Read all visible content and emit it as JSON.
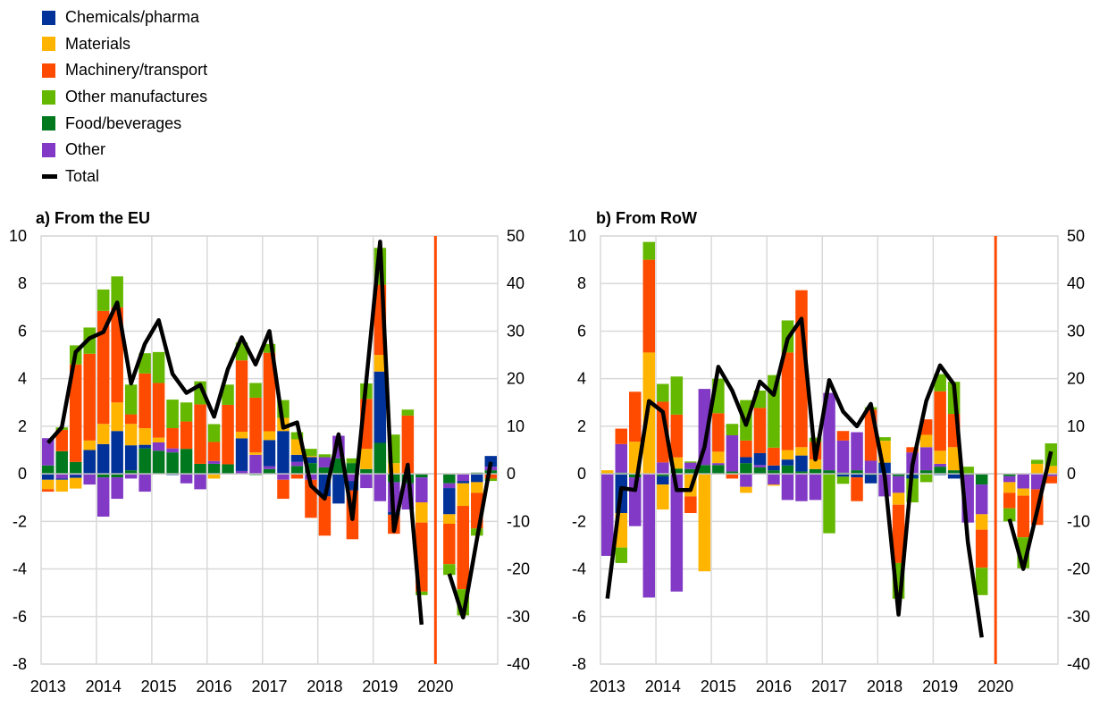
{
  "legend": [
    {
      "key": "chem",
      "label": "Chemicals/pharma",
      "color": "#003299"
    },
    {
      "key": "mat",
      "label": "Materials",
      "color": "#ffb400"
    },
    {
      "key": "mach",
      "label": "Machinery/transport",
      "color": "#ff4b00"
    },
    {
      "key": "othman",
      "label": "Other manufactures",
      "color": "#65b800"
    },
    {
      "key": "food",
      "label": "Food/beverages",
      "color": "#00781e"
    },
    {
      "key": "other",
      "label": "Other",
      "color": "#8139c6"
    },
    {
      "key": "total",
      "label": "Total",
      "color": "#000000"
    }
  ],
  "break_line_color": "#ff4b00",
  "chart_data": [
    {
      "type": "bar",
      "title": "a) From the EU",
      "x_ticks": [
        "2013",
        "2014",
        "2015",
        "2016",
        "2017",
        "2018",
        "2019",
        "2020"
      ],
      "quarters": [
        "2013Q1",
        "2013Q2",
        "2013Q3",
        "2013Q4",
        "2014Q1",
        "2014Q2",
        "2014Q3",
        "2014Q4",
        "2015Q1",
        "2015Q2",
        "2015Q3",
        "2015Q4",
        "2016Q1",
        "2016Q2",
        "2016Q3",
        "2016Q4",
        "2017Q1",
        "2017Q2",
        "2017Q3",
        "2017Q4",
        "2018Q1",
        "2018Q2",
        "2018Q3",
        "2018Q4",
        "2019Q1",
        "2019Q2",
        "2019Q3",
        "2019Q4",
        "2020Q1",
        "2020Q2",
        "2020Q3",
        "2020Q4"
      ],
      "ylim_left": [
        -8,
        10
      ],
      "yticks_left": [
        "10",
        "8",
        "6",
        "4",
        "2",
        "0",
        "-2",
        "-4",
        "-6",
        "-8"
      ],
      "ylim_right": [
        -40,
        50
      ],
      "yticks_right": [
        "50",
        "40",
        "30",
        "20",
        "10",
        "0",
        "-10",
        "-20",
        "-30",
        "-40"
      ],
      "series": {
        "chem": [
          -0.25,
          -0.05,
          -0.12,
          1.0,
          1.25,
          1.8,
          1.05,
          0.15,
          0,
          -0.05,
          0,
          0,
          0,
          0,
          1.37,
          0,
          1.1,
          1.8,
          0.3,
          0.25,
          -0.95,
          -1.25,
          -0.4,
          0,
          3.0,
          -0.12,
          0,
          0,
          -1.1,
          -0.1,
          -0.35,
          0.45
        ],
        "mat": [
          -0.4,
          -0.5,
          -0.45,
          0.4,
          0.85,
          1.2,
          0.9,
          0.7,
          0.2,
          0,
          0,
          0,
          -0.2,
          0,
          0.28,
          0.1,
          0.37,
          0.55,
          0.65,
          0.05,
          0,
          0,
          0,
          0.85,
          0.7,
          0.45,
          0,
          -0.85,
          -0.4,
          -0.95,
          -0.45,
          0
        ],
        "mach": [
          -0.1,
          0.9,
          4.1,
          3.65,
          4.75,
          4.0,
          0.4,
          2.3,
          2.3,
          0.85,
          1.15,
          2.5,
          0.8,
          2.5,
          3.0,
          2.3,
          3.3,
          -0.8,
          -0.2,
          -1.6,
          -1.65,
          0,
          -2.05,
          2.1,
          2.95,
          -0.8,
          2.45,
          -2.9,
          -1.7,
          -3.5,
          -1.5,
          -0.2
        ],
        "othman": [
          0,
          0.1,
          0.8,
          1.1,
          0.9,
          1.3,
          1.25,
          0.85,
          1.3,
          1.2,
          0.8,
          0.97,
          0.75,
          0.85,
          0.75,
          0.62,
          0.37,
          0.75,
          0.3,
          0.3,
          0.12,
          0,
          0.2,
          0.65,
          1.55,
          1.2,
          0.25,
          -0.15,
          -0.45,
          -1.1,
          -0.3,
          -0.1
        ],
        "food": [
          0.35,
          0.95,
          0.5,
          0,
          -0.15,
          -0.15,
          0.15,
          1.07,
          0.97,
          0.9,
          1.05,
          0.42,
          0.42,
          0.4,
          0,
          -0.05,
          0.2,
          0,
          0.33,
          0.45,
          0.27,
          0.65,
          0.45,
          0.2,
          1.3,
          -0.35,
          -0.4,
          -0.15,
          -0.4,
          0,
          0.05,
          0.15
        ],
        "other": [
          1.15,
          -0.2,
          -0.05,
          -0.45,
          -1.65,
          -0.9,
          -0.2,
          -0.75,
          0.35,
          0.17,
          -0.4,
          -0.65,
          0.12,
          0,
          0.12,
          0.8,
          0.12,
          -0.25,
          0.17,
          -0.25,
          0.43,
          0.95,
          -0.3,
          -0.6,
          -1.15,
          -1.25,
          -1.1,
          -1.05,
          -0.2,
          -0.3,
          0,
          0.15
        ],
        "total": [
          6.5,
          9.8,
          25.6,
          28.5,
          29.8,
          36,
          19,
          27.3,
          32.3,
          21,
          17,
          18.7,
          12,
          22,
          28.7,
          23,
          30,
          9.7,
          10.8,
          -2.5,
          -5.2,
          8.3,
          -9.5,
          19.5,
          48.8,
          -12,
          1.9,
          -31.7,
          -21,
          -30.2,
          -13.7,
          2.5
        ]
      }
    },
    {
      "type": "bar",
      "title": "b) From RoW",
      "x_ticks": [
        "2013",
        "2014",
        "2015",
        "2016",
        "2017",
        "2018",
        "2019",
        "2020"
      ],
      "quarters": [
        "2013Q1",
        "2013Q2",
        "2013Q3",
        "2013Q4",
        "2014Q1",
        "2014Q2",
        "2014Q3",
        "2014Q4",
        "2015Q1",
        "2015Q2",
        "2015Q3",
        "2015Q4",
        "2016Q1",
        "2016Q2",
        "2016Q3",
        "2016Q4",
        "2017Q1",
        "2017Q2",
        "2017Q3",
        "2017Q4",
        "2018Q1",
        "2018Q2",
        "2018Q3",
        "2018Q4",
        "2019Q1",
        "2019Q2",
        "2019Q3",
        "2019Q4",
        "2020Q1",
        "2020Q2",
        "2020Q3",
        "2020Q4"
      ],
      "ylim_left": [
        -8,
        10
      ],
      "yticks_left": [
        "10",
        "8",
        "6",
        "4",
        "2",
        "0",
        "-2",
        "-4",
        "-6",
        "-8"
      ],
      "ylim_right": [
        -40,
        50
      ],
      "yticks_right": [
        "50",
        "40",
        "30",
        "20",
        "10",
        "0",
        "-10",
        "-20",
        "-30",
        "-40"
      ],
      "series": {
        "chem": [
          0,
          -1.65,
          0,
          0,
          -0.35,
          0,
          0,
          0,
          0,
          0,
          0.25,
          0.5,
          0.2,
          0.25,
          0.67,
          0,
          0,
          -0.12,
          -0.15,
          -0.35,
          0.47,
          0,
          -0.15,
          0,
          -0.05,
          -0.2,
          0,
          0,
          0,
          0,
          0,
          0
        ],
        "mat": [
          0.15,
          -1.45,
          1.35,
          5.1,
          -1.05,
          0.47,
          -0.95,
          -4.1,
          0.48,
          0,
          -0.25,
          0,
          -0.05,
          0.4,
          0.35,
          0.4,
          0,
          0,
          0,
          0,
          0.92,
          -0.5,
          0,
          0.52,
          0.55,
          0.97,
          0,
          -0.65,
          -0.45,
          -0.3,
          0.42,
          0.33
        ],
        "mach": [
          0,
          0.65,
          2.1,
          3.9,
          2.55,
          1.8,
          -0.7,
          0,
          1.62,
          -0.2,
          0.7,
          1.9,
          0.75,
          4.1,
          6.6,
          0.75,
          0,
          0.4,
          -1.0,
          2.15,
          0,
          -2.45,
          0.22,
          0.65,
          2.5,
          1.4,
          0,
          -1.6,
          -0.65,
          -1.75,
          -1.5,
          -0.3
        ],
        "othman": [
          0,
          -0.65,
          0,
          0.75,
          0.75,
          1.6,
          0.05,
          0,
          1.45,
          0.48,
          1.7,
          0.73,
          3.05,
          1.35,
          0,
          0.17,
          -2.5,
          -0.3,
          0,
          0.1,
          0.15,
          -1.5,
          -1.0,
          -0.35,
          0.72,
          1.35,
          0.3,
          -1.15,
          -0.55,
          -1.3,
          0.17,
          0.95
        ],
        "food": [
          0,
          0.05,
          -0.15,
          0,
          -0.1,
          0.22,
          0.2,
          0.37,
          0.37,
          0.1,
          0.45,
          0.27,
          0.15,
          0.35,
          0.1,
          0.2,
          0.15,
          0.05,
          0.15,
          -0.05,
          0,
          -0.1,
          -0.05,
          0.15,
          0.3,
          0.15,
          -0.05,
          -0.45,
          -0.1,
          0,
          0,
          0
        ],
        "other": [
          -3.45,
          1.2,
          -2.05,
          -5.2,
          0.48,
          -4.95,
          0.27,
          3.2,
          0.08,
          1.52,
          -0.55,
          0.1,
          -0.45,
          -1.1,
          -1.15,
          -1.1,
          3.25,
          1.35,
          1.6,
          0.55,
          -0.95,
          -0.7,
          0.9,
          0.97,
          0.12,
          0,
          -2.0,
          -1.25,
          -0.25,
          -0.62,
          -0.65,
          -0.1
        ],
        "total": [
          -26.2,
          -3,
          -3.4,
          15.3,
          13,
          -3.4,
          -3.4,
          5.6,
          22.5,
          17.5,
          10.3,
          19.4,
          16.6,
          28.4,
          32.6,
          3,
          19.7,
          13.1,
          10,
          14.7,
          -0.5,
          -29.6,
          1.8,
          15.3,
          22.8,
          18.8,
          -14.4,
          -34.4,
          -9.5,
          -20,
          -7.8,
          4.7
        ]
      }
    }
  ]
}
